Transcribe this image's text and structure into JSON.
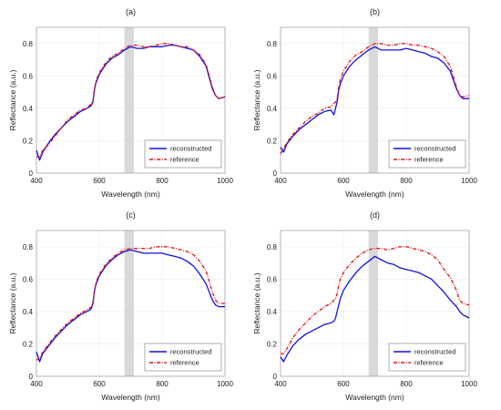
{
  "colors": {
    "reconstructed": "#1010e0",
    "reference": "#e01010",
    "band": "#d9d9d9",
    "grid": "#ececec",
    "axis": "#9a9a9a"
  },
  "chart_data": [
    {
      "type": "line",
      "title": "(a)",
      "xlabel": "Wavelength (nm)",
      "ylabel": "Reflectance (a.u.)",
      "xlim": [
        400,
        1000
      ],
      "ylim": [
        0,
        0.9
      ],
      "xticks": [
        400,
        600,
        800,
        1000
      ],
      "yticks": [
        0,
        0.2,
        0.4,
        0.6,
        0.8
      ],
      "grid": true,
      "legend_position": "bottom-right",
      "shaded_band": [
        680,
        710
      ],
      "x": [
        400,
        410,
        420,
        440,
        460,
        480,
        500,
        520,
        540,
        560,
        570,
        575,
        580,
        585,
        590,
        600,
        620,
        640,
        660,
        680,
        700,
        720,
        740,
        760,
        780,
        800,
        820,
        840,
        860,
        880,
        900,
        920,
        940,
        960,
        970,
        980,
        1000
      ],
      "series": [
        {
          "name": "reconstructed",
          "style": "solid",
          "values": [
            0.14,
            0.08,
            0.13,
            0.19,
            0.24,
            0.28,
            0.32,
            0.35,
            0.38,
            0.4,
            0.41,
            0.42,
            0.44,
            0.52,
            0.56,
            0.61,
            0.67,
            0.71,
            0.73,
            0.76,
            0.78,
            0.77,
            0.77,
            0.78,
            0.78,
            0.78,
            0.79,
            0.79,
            0.78,
            0.77,
            0.76,
            0.72,
            0.66,
            0.52,
            0.48,
            0.46,
            0.47
          ]
        },
        {
          "name": "reference",
          "style": "dashdot",
          "values": [
            0.1,
            0.1,
            0.14,
            0.18,
            0.23,
            0.28,
            0.33,
            0.36,
            0.39,
            0.4,
            0.42,
            0.43,
            0.45,
            0.52,
            0.57,
            0.62,
            0.68,
            0.72,
            0.74,
            0.77,
            0.79,
            0.79,
            0.78,
            0.78,
            0.79,
            0.8,
            0.8,
            0.79,
            0.78,
            0.78,
            0.76,
            0.73,
            0.67,
            0.53,
            0.48,
            0.46,
            0.47
          ]
        }
      ]
    },
    {
      "type": "line",
      "title": "(b)",
      "xlabel": "Wavelength (nm)",
      "ylabel": "Reflectance (a.u.)",
      "xlim": [
        400,
        1000
      ],
      "ylim": [
        0,
        0.9
      ],
      "xticks": [
        400,
        600,
        800,
        1000
      ],
      "yticks": [
        0,
        0.2,
        0.4,
        0.6,
        0.8
      ],
      "grid": true,
      "legend_position": "bottom-right",
      "shaded_band": [
        680,
        710
      ],
      "x": [
        400,
        410,
        420,
        440,
        460,
        480,
        500,
        520,
        540,
        560,
        570,
        575,
        580,
        585,
        590,
        600,
        620,
        640,
        660,
        680,
        700,
        720,
        740,
        760,
        780,
        800,
        820,
        840,
        860,
        880,
        900,
        920,
        940,
        960,
        970,
        980,
        1000
      ],
      "series": [
        {
          "name": "reconstructed",
          "style": "solid",
          "values": [
            0.16,
            0.13,
            0.18,
            0.23,
            0.27,
            0.3,
            0.33,
            0.36,
            0.38,
            0.39,
            0.36,
            0.4,
            0.44,
            0.51,
            0.55,
            0.6,
            0.66,
            0.7,
            0.73,
            0.76,
            0.78,
            0.76,
            0.76,
            0.76,
            0.76,
            0.77,
            0.76,
            0.75,
            0.74,
            0.72,
            0.71,
            0.68,
            0.63,
            0.52,
            0.48,
            0.46,
            0.46
          ]
        },
        {
          "name": "reference",
          "style": "dashdot",
          "values": [
            0.12,
            0.15,
            0.19,
            0.24,
            0.28,
            0.32,
            0.35,
            0.37,
            0.4,
            0.41,
            0.43,
            0.44,
            0.46,
            0.53,
            0.58,
            0.63,
            0.69,
            0.73,
            0.75,
            0.78,
            0.8,
            0.8,
            0.79,
            0.79,
            0.8,
            0.8,
            0.79,
            0.79,
            0.78,
            0.77,
            0.75,
            0.72,
            0.66,
            0.53,
            0.48,
            0.47,
            0.48
          ]
        }
      ]
    },
    {
      "type": "line",
      "title": "(c)",
      "xlabel": "Wavelength (nm)",
      "ylabel": "Reflectance (a.u.)",
      "xlim": [
        400,
        1000
      ],
      "ylim": [
        0,
        0.9
      ],
      "xticks": [
        400,
        600,
        800,
        1000
      ],
      "yticks": [
        0,
        0.2,
        0.4,
        0.6,
        0.8
      ],
      "grid": true,
      "legend_position": "bottom-right",
      "shaded_band": [
        680,
        710
      ],
      "x": [
        400,
        410,
        420,
        440,
        460,
        480,
        500,
        520,
        540,
        560,
        570,
        575,
        580,
        585,
        590,
        600,
        620,
        640,
        660,
        680,
        700,
        720,
        740,
        760,
        780,
        800,
        820,
        840,
        860,
        880,
        900,
        920,
        940,
        960,
        970,
        980,
        1000
      ],
      "series": [
        {
          "name": "reconstructed",
          "style": "solid",
          "values": [
            0.15,
            0.09,
            0.14,
            0.19,
            0.24,
            0.28,
            0.32,
            0.35,
            0.38,
            0.4,
            0.41,
            0.42,
            0.45,
            0.53,
            0.57,
            0.62,
            0.68,
            0.72,
            0.75,
            0.77,
            0.78,
            0.77,
            0.76,
            0.76,
            0.76,
            0.76,
            0.75,
            0.74,
            0.73,
            0.71,
            0.68,
            0.63,
            0.57,
            0.47,
            0.44,
            0.43,
            0.43
          ]
        },
        {
          "name": "reference",
          "style": "dashdot",
          "values": [
            0.1,
            0.11,
            0.15,
            0.2,
            0.25,
            0.29,
            0.33,
            0.36,
            0.39,
            0.41,
            0.42,
            0.43,
            0.46,
            0.53,
            0.58,
            0.63,
            0.69,
            0.73,
            0.76,
            0.78,
            0.79,
            0.79,
            0.79,
            0.79,
            0.8,
            0.8,
            0.8,
            0.79,
            0.78,
            0.77,
            0.75,
            0.71,
            0.65,
            0.52,
            0.47,
            0.45,
            0.45
          ]
        }
      ]
    },
    {
      "type": "line",
      "title": "(d)",
      "xlabel": "Wavelength (nm)",
      "ylabel": "Reflectance (a.u.)",
      "xlim": [
        400,
        1000
      ],
      "ylim": [
        0,
        0.9
      ],
      "xticks": [
        400,
        600,
        800,
        1000
      ],
      "yticks": [
        0,
        0.2,
        0.4,
        0.6,
        0.8
      ],
      "grid": true,
      "legend_position": "bottom-right",
      "shaded_band": [
        680,
        710
      ],
      "x": [
        400,
        410,
        420,
        440,
        460,
        480,
        500,
        520,
        540,
        560,
        570,
        575,
        580,
        585,
        590,
        600,
        620,
        640,
        660,
        680,
        700,
        720,
        740,
        760,
        780,
        800,
        820,
        840,
        860,
        880,
        900,
        920,
        940,
        960,
        970,
        980,
        1000
      ],
      "series": [
        {
          "name": "reconstructed",
          "style": "solid",
          "values": [
            0.12,
            0.09,
            0.13,
            0.19,
            0.23,
            0.26,
            0.28,
            0.3,
            0.32,
            0.33,
            0.34,
            0.36,
            0.4,
            0.44,
            0.48,
            0.53,
            0.59,
            0.64,
            0.68,
            0.71,
            0.74,
            0.72,
            0.7,
            0.69,
            0.67,
            0.66,
            0.65,
            0.64,
            0.62,
            0.6,
            0.56,
            0.52,
            0.47,
            0.43,
            0.4,
            0.38,
            0.36
          ]
        },
        {
          "name": "reference",
          "style": "dashdot",
          "values": [
            0.14,
            0.14,
            0.17,
            0.24,
            0.29,
            0.33,
            0.37,
            0.4,
            0.43,
            0.45,
            0.47,
            0.48,
            0.51,
            0.56,
            0.6,
            0.64,
            0.69,
            0.73,
            0.76,
            0.78,
            0.79,
            0.79,
            0.78,
            0.79,
            0.8,
            0.8,
            0.79,
            0.78,
            0.77,
            0.75,
            0.72,
            0.66,
            0.61,
            0.53,
            0.47,
            0.45,
            0.44
          ]
        }
      ]
    }
  ]
}
